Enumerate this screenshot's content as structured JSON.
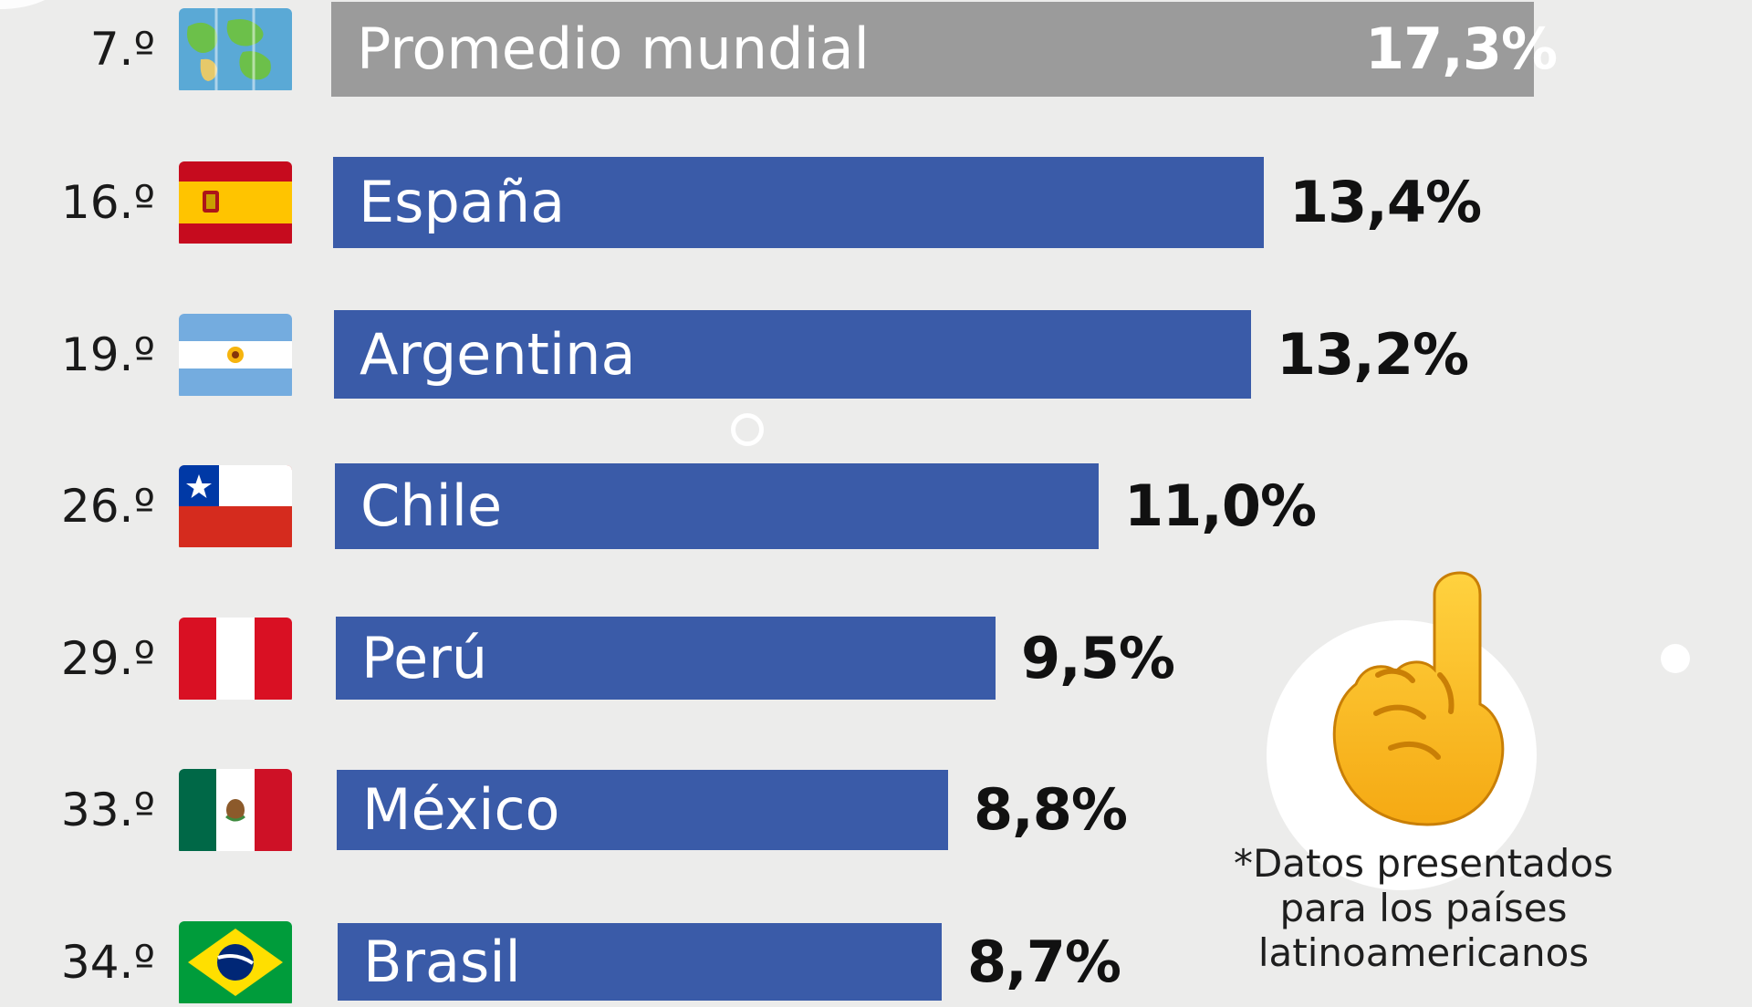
{
  "chart_data": {
    "type": "bar",
    "orientation": "horizontal",
    "rows": [
      {
        "rank": "7.º",
        "label": "Promedio mundial",
        "value": 17.3,
        "value_label": "17,3%",
        "flag": "world-map-icon"
      },
      {
        "rank": "16.º",
        "label": "España",
        "value": 13.4,
        "value_label": "13,4%",
        "flag": "spain-flag-icon"
      },
      {
        "rank": "19.º",
        "label": "Argentina",
        "value": 13.2,
        "value_label": "13,2%",
        "flag": "argentina-flag-icon"
      },
      {
        "rank": "26.º",
        "label": "Chile",
        "value": 11.0,
        "value_label": "11,0%",
        "flag": "chile-flag-icon"
      },
      {
        "rank": "29.º",
        "label": "Perú",
        "value": 9.5,
        "value_label": "9,5%",
        "flag": "peru-flag-icon"
      },
      {
        "rank": "33.º",
        "label": "México",
        "value": 8.8,
        "value_label": "8,8%",
        "flag": "mexico-flag-icon"
      },
      {
        "rank": "34.º",
        "label": "Brasil",
        "value": 8.7,
        "value_label": "8,7%",
        "flag": "brazil-flag-icon"
      }
    ],
    "colors": {
      "average_bar": "#9b9b9b",
      "country_bar": "#3a5ba8"
    }
  },
  "note": {
    "lines": [
      "*Datos presentados",
      "para los países",
      "latinoamericanos"
    ],
    "icon": "index-pointing-up-icon"
  }
}
